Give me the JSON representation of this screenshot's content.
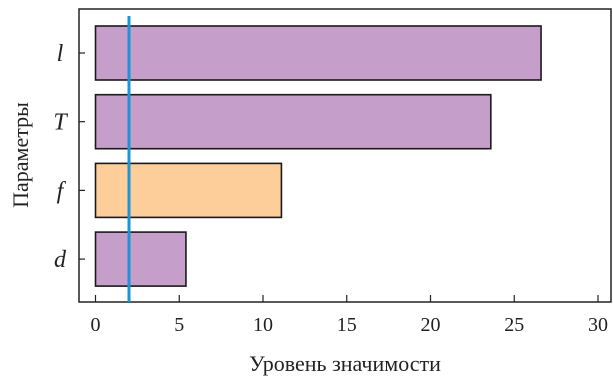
{
  "chart_data": {
    "type": "bar",
    "orientation": "horizontal",
    "categories": [
      "l",
      "T",
      "f",
      "d"
    ],
    "values": [
      26.6,
      23.6,
      11.1,
      5.4
    ],
    "bar_colors": [
      "#c59fc9",
      "#c59fc9",
      "#fdcd9a",
      "#c59fc9"
    ],
    "xlabel": "Уровень значимости",
    "ylabel": "Параметры",
    "xlim": [
      0,
      31
    ],
    "xticks": [
      0,
      5,
      10,
      15,
      20,
      25,
      30
    ],
    "threshold": {
      "value": 2.0,
      "color": "#1a96d4"
    },
    "grid": false,
    "legend": "none"
  }
}
